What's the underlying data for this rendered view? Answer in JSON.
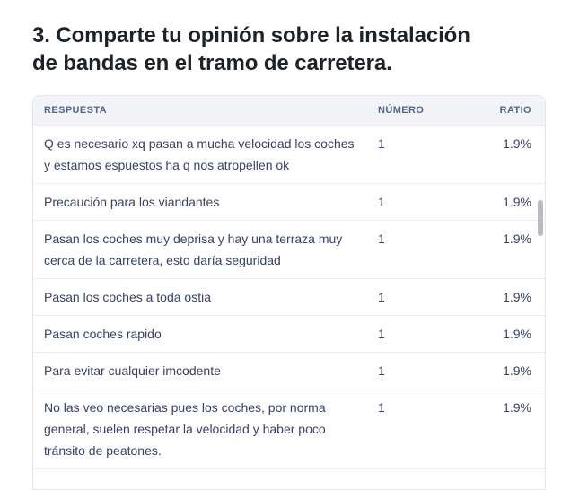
{
  "page_title": {
    "line1": "3. Comparte tu opinión sobre la instalación",
    "line2": "de bandas en el tramo de carretera."
  },
  "table": {
    "columns": [
      {
        "key": "respuesta",
        "label": "RESPUESTA"
      },
      {
        "key": "numero",
        "label": "NÚMERO"
      },
      {
        "key": "ratio",
        "label": "RATIO"
      }
    ],
    "rows": [
      {
        "respuesta": "Q es necesario xq pasan a mucha velocidad los coches y estamos espuestos ha q nos atropellen ok",
        "numero": "1",
        "ratio": "1.9%"
      },
      {
        "respuesta": "Precaución para los viandantes",
        "numero": "1",
        "ratio": "1.9%"
      },
      {
        "respuesta": "Pasan los coches muy deprisa y hay una terraza muy cerca de la carretera, esto daría seguridad",
        "numero": "1",
        "ratio": "1.9%"
      },
      {
        "respuesta": "Pasan los coches a toda ostia",
        "numero": "1",
        "ratio": "1.9%"
      },
      {
        "respuesta": "Pasan coches rapido",
        "numero": "1",
        "ratio": "1.9%"
      },
      {
        "respuesta": "Para evitar cualquier imcodente",
        "numero": "1",
        "ratio": "1.9%"
      },
      {
        "respuesta": "No las veo necesarias pues los coches, por norma general, suelen respetar la velocidad y haber poco tránsito de peatones.",
        "numero": "1",
        "ratio": "1.9%"
      }
    ]
  },
  "colors": {
    "title_text": "#1e2227",
    "header_background": "#f2f4f8",
    "header_text": "#53658b",
    "body_text": "#3a4063",
    "row_divider": "#e9edf5",
    "card_border": "#e3e7f0",
    "scrollbar_thumb": "#b9bbc1"
  }
}
